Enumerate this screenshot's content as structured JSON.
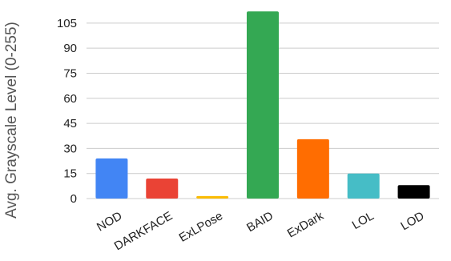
{
  "chart_data": {
    "type": "bar",
    "title": "",
    "xlabel": "",
    "ylabel": "Avg. Grayscale Level (0-255)",
    "categories": [
      "NOD",
      "DARKFACE",
      "ExLPose",
      "BAID",
      "ExDark",
      "LOL",
      "LOD"
    ],
    "values": [
      24,
      12,
      1.5,
      112,
      35.5,
      15,
      8
    ],
    "colors": [
      "#4285f4",
      "#ea4335",
      "#fbbc04",
      "#34a853",
      "#ff6d01",
      "#46bdc6",
      "#000000"
    ],
    "ylim": [
      0,
      115
    ],
    "yticks": [
      0,
      15,
      30,
      45,
      60,
      75,
      90,
      105
    ],
    "grid": true,
    "legend": "none"
  }
}
